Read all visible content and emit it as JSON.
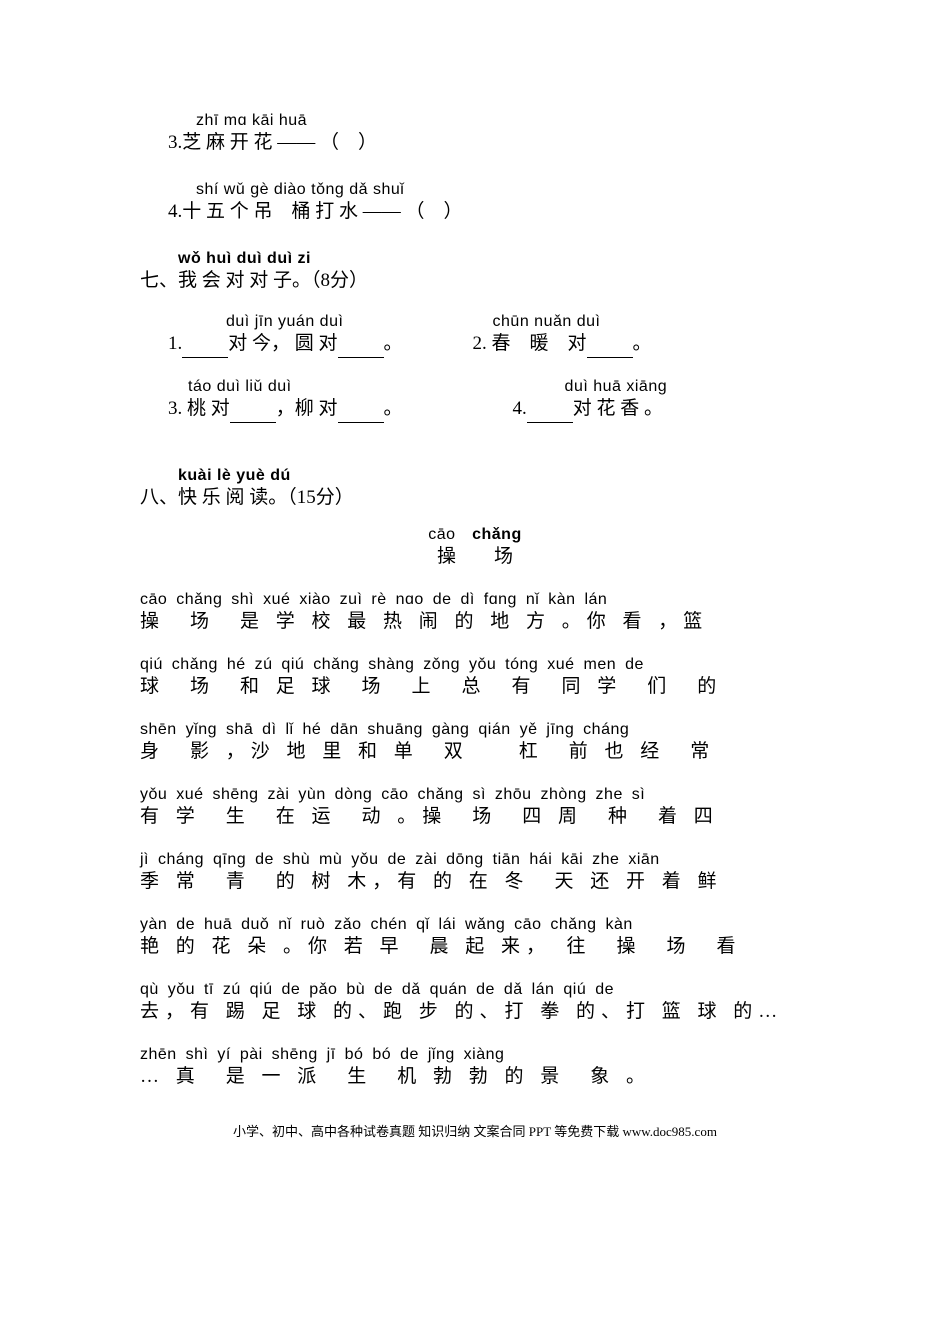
{
  "items": [
    {
      "num": "3.",
      "pinyin": "zhī mɑ kāi huā",
      "pinyin_pad": 28,
      "hanzi": "芝 麻 开 花 —— （　）"
    },
    {
      "num": "4.",
      "pinyin": "shí wǔ gè diào tǒng dǎ shuǐ",
      "pinyin_pad": 28,
      "hanzi": "十 五 个 吊　桶 打 水 —— （　）"
    }
  ],
  "section7": {
    "label": "七、",
    "pinyin": "wǒ huì duì duì zi",
    "hanzi": "我 会 对 对 子。（8分）"
  },
  "couplets": {
    "row1": {
      "left": {
        "pinyin": "duì jīn  yuán duì",
        "hanzi_pre": "1.",
        "hanzi_post": "对 今， 圆 对",
        "tail": "。"
      },
      "right": {
        "pinyin": "chūn nuǎn duì",
        "hanzi_pre": "2. 春　暖　对",
        "tail": "。"
      }
    },
    "row2": {
      "left": {
        "pinyin": "táo duì        liǔ duì",
        "hanzi_pre": "3. 桃 对",
        "mid": "，柳 对",
        "tail": "。"
      },
      "right": {
        "pinyin": "duì huā xiāng",
        "hanzi_pre": "4.",
        "hanzi_post": "对 花 香 。"
      }
    }
  },
  "section8": {
    "label": "八、",
    "pinyin": "kuài lè yuè dú",
    "hanzi": "快 乐 阅 读。（15分）"
  },
  "reading_title": {
    "pinyin": "cāo　chǎng",
    "hanzi": "操　　场",
    "bold_part": "chǎng"
  },
  "reading": [
    {
      "p": "cāo chǎng shì xué xiào zuì rè nɑo de dì fɑng  nǐ kàn  lán",
      "h": "操　场　是 学 校 最 热 闹 的 地 方 。你 看 ，篮"
    },
    {
      "p": "qiú chǎng hé zú qiú chǎng shàng zǒng yǒu tóng xué men de",
      "h": "球　场　和 足 球　场　上　总　有　同 学　们　的"
    },
    {
      "p": "shēn yǐng  shā dì lǐ hé dān shuāng gàng qián yě jīng cháng",
      "h": "身　影 ，沙 地 里 和 单　双　　杠　前 也 经　常"
    },
    {
      "p": "yǒu xué shēng zài yùn dòng  cāo chǎng sì zhōu zhòng zhe sì",
      "h": "有 学　生　在 运　动 。操　场　四 周　种　着 四"
    },
    {
      "p": "jì cháng qīng de shù mù  yǒu de zài dōng tiān hái kāi zhe xiān",
      "h": "季 常　青　的 树 木，有 的 在 冬　天 还 开 着 鲜"
    },
    {
      "p": "yàn de huā duǒ  nǐ ruò zǎo chén qǐ lái  wǎng cāo chǎng kàn",
      "h": "艳 的 花 朵 。你 若 早　晨 起 来，　往　操　场　看"
    },
    {
      "p": "qù  yǒu tī zú qiú de  pǎo bù de  dǎ quán de  dǎ lán qiú de",
      "h": "去，有 踢 足 球 的、跑 步 的、打 拳 的、打 篮 球 的…"
    },
    {
      "p": "  zhēn shì yí pài shēng jī bó bó de jǐng xiàng",
      "h": "… 真　是 一 派　生　机 勃 勃 的 景　象 。"
    }
  ],
  "footer": "小学、初中、高中各种试卷真题 知识归纳 文案合同 PPT 等免费下载  www.doc985.com"
}
